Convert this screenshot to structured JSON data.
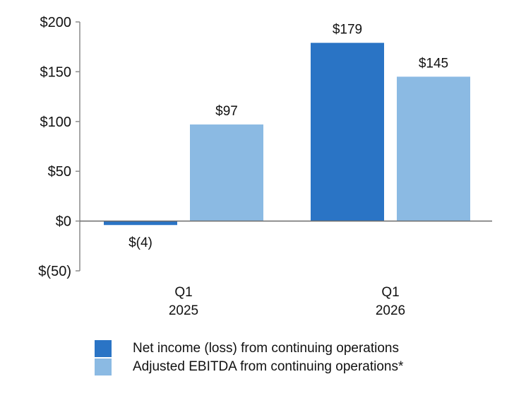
{
  "chart_data": {
    "type": "bar",
    "title": "",
    "xlabel": "",
    "ylabel": "",
    "categories": [
      {
        "line1": "Q1",
        "line2": "2025"
      },
      {
        "line1": "Q1",
        "line2": "2026"
      }
    ],
    "series": [
      {
        "name": "Net income (loss) from continuing operations",
        "color": "#2a74c5",
        "values": [
          -4,
          179
        ],
        "value_labels": [
          "$(4)",
          "$179"
        ]
      },
      {
        "name": "Adjusted EBITDA from continuing operations*",
        "color": "#8bbae3",
        "values": [
          97,
          145
        ],
        "value_labels": [
          "$97",
          "$145"
        ]
      }
    ],
    "ylim": [
      -50,
      200
    ],
    "yticks": [
      200,
      150,
      100,
      50,
      0,
      -50
    ],
    "ytick_labels": [
      "$200",
      "$150",
      "$100",
      "$50",
      "$0",
      "$(50)"
    ],
    "grid": false,
    "legend_position": "bottom"
  }
}
